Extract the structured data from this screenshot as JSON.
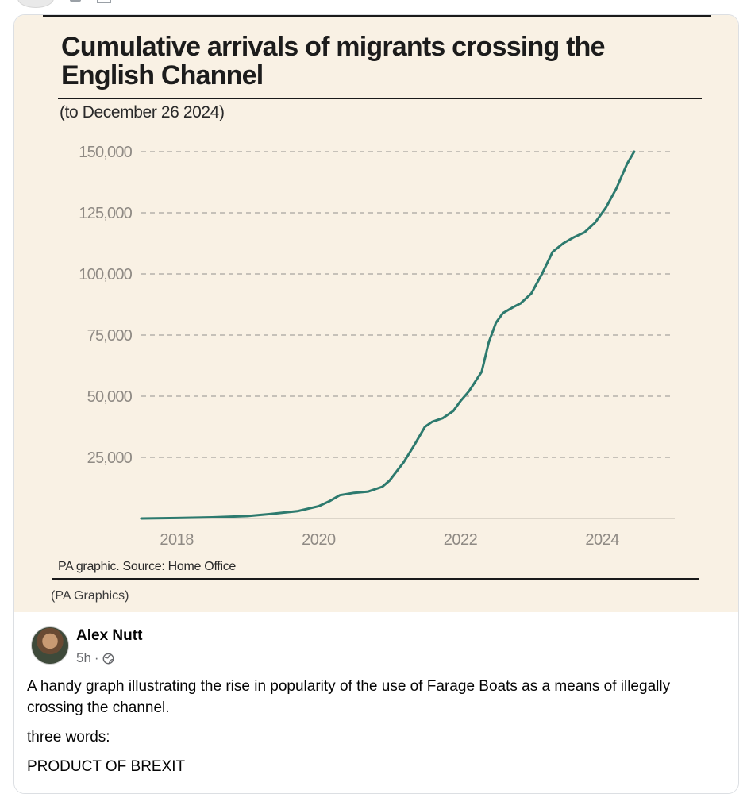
{
  "post": {
    "author": "Alex Nutt",
    "time": "5h",
    "separator": "·",
    "privacy_icon": "globe-icon",
    "text_lines": [
      "A handy graph illustrating the rise in popularity of the use of Farage Boats as a means of illegally crossing the channel.",
      "three words:",
      "PRODUCT OF BREXIT"
    ]
  },
  "graphic": {
    "source": "PA graphic. Source: Home Office",
    "credit": "(PA Graphics)"
  },
  "chart_data": {
    "type": "line",
    "title": "Cumulative arrivals of migrants crossing the English Channel",
    "subtitle": "(to December 26 2024)",
    "xlabel": "",
    "ylabel": "",
    "ylim": [
      0,
      150000
    ],
    "xlim": [
      2017.5,
      2025.0
    ],
    "yticks": [
      25000,
      50000,
      75000,
      100000,
      125000,
      150000
    ],
    "ytick_labels": [
      "25,000",
      "50,000",
      "75,000",
      "100,000",
      "125,000",
      "150,000"
    ],
    "xticks": [
      2018,
      2020,
      2022,
      2024
    ],
    "xtick_labels": [
      "2018",
      "2020",
      "2022",
      "2024"
    ],
    "grid": "horizontal dashed",
    "line_color": "#2d7a6e",
    "series": [
      {
        "name": "Cumulative arrivals",
        "x": [
          2017.5,
          2018.0,
          2018.5,
          2019.0,
          2019.3,
          2019.7,
          2020.0,
          2020.15,
          2020.3,
          2020.5,
          2020.7,
          2020.9,
          2021.0,
          2021.2,
          2021.35,
          2021.5,
          2021.6,
          2021.75,
          2021.9,
          2022.0,
          2022.12,
          2022.3,
          2022.4,
          2022.5,
          2022.6,
          2022.75,
          2022.85,
          2023.0,
          2023.15,
          2023.3,
          2023.45,
          2023.6,
          2023.75,
          2023.9,
          2024.05,
          2024.2,
          2024.35,
          2024.45
        ],
        "y": [
          0,
          200,
          500,
          1000,
          1800,
          3000,
          5000,
          7000,
          9500,
          10500,
          11000,
          13000,
          15500,
          23000,
          30000,
          37500,
          39500,
          41000,
          44000,
          48000,
          52000,
          60000,
          72000,
          80000,
          84000,
          86500,
          88000,
          92000,
          100000,
          109000,
          112500,
          115000,
          117000,
          121000,
          127000,
          135000,
          145000,
          150000
        ]
      }
    ]
  }
}
